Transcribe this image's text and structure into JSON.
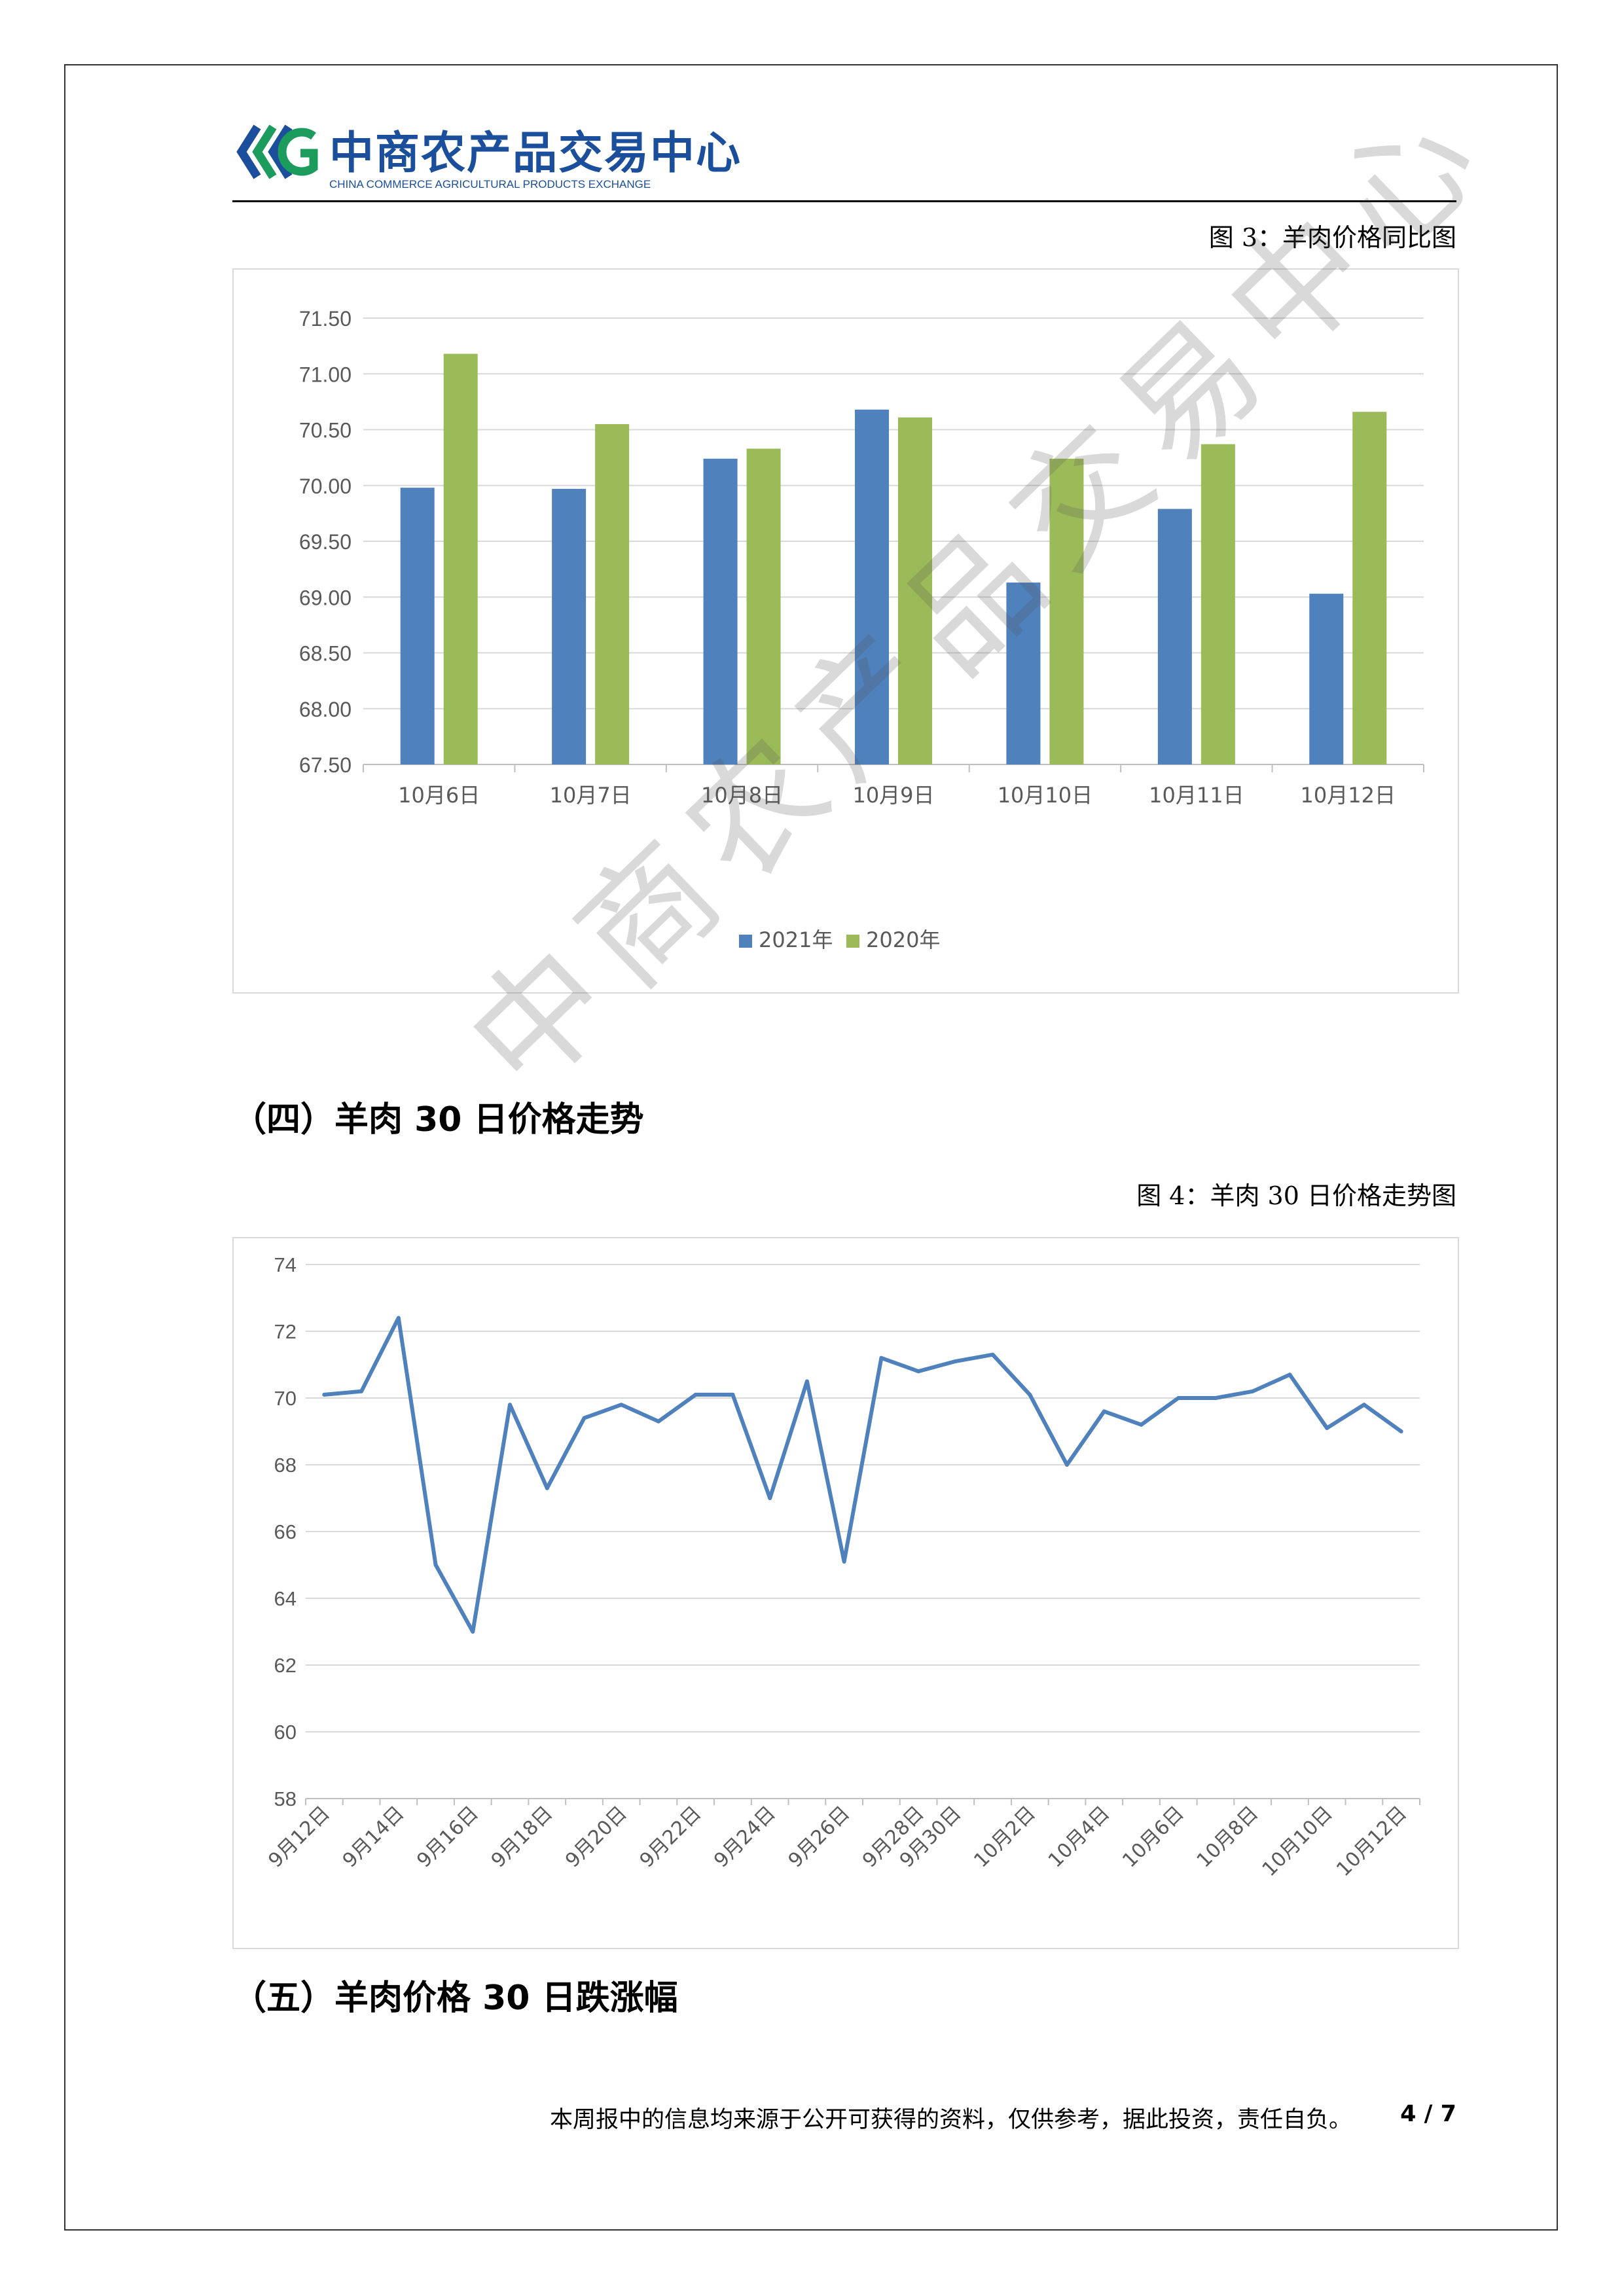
{
  "header": {
    "logo_cn": "中商农产品交易中心",
    "logo_en": "CHINA COMMERCE AGRICULTURAL PRODUCTS EXCHANGE"
  },
  "figure3_caption": "图 3：羊肉价格同比图",
  "section4_title": "（四）羊肉 30 日价格走势",
  "figure4_caption": "图 4：羊肉 30 日价格走势图",
  "section5_title": "（五）羊肉价格 30 日跌涨幅",
  "watermark": "中商农产品交易中心",
  "footer": {
    "disclaimer": "本周报中的信息均来源于公开可获得的资料，仅供参考，据此投资，责任自负。",
    "page": "4 / 7"
  },
  "colors": {
    "series_2021": "#4f81bd",
    "series_2020": "#9bbb59",
    "line": "#4f81bd",
    "grid": "#d9d9d9",
    "brand": "#1b4f9c"
  },
  "chart_data": [
    {
      "type": "bar",
      "categories": [
        "10月6日",
        "10月7日",
        "10月8日",
        "10月9日",
        "10月10日",
        "10月11日",
        "10月12日"
      ],
      "series": [
        {
          "name": "2021年",
          "values": [
            69.98,
            69.97,
            70.24,
            70.68,
            69.13,
            69.79,
            69.03
          ]
        },
        {
          "name": "2020年",
          "values": [
            71.18,
            70.55,
            70.33,
            70.61,
            70.24,
            70.37,
            70.66
          ]
        }
      ],
      "yticks": [
        "67.50",
        "68.00",
        "68.50",
        "69.00",
        "69.50",
        "70.00",
        "70.50",
        "71.00",
        "71.50"
      ],
      "ylim": [
        67.5,
        71.5
      ],
      "legend": "bottom",
      "grid": true
    },
    {
      "type": "line",
      "x": [
        "9月12日",
        "9月13日",
        "9月14日",
        "9月15日",
        "9月16日",
        "9月17日",
        "9月18日",
        "9月19日",
        "9月20日",
        "9月21日",
        "9月22日",
        "9月23日",
        "9月24日",
        "9月25日",
        "9月26日",
        "9月27日",
        "9月28日",
        "9月30日",
        "10月1日",
        "10月2日",
        "10月3日",
        "10月4日",
        "10月5日",
        "10月6日",
        "10月7日",
        "10月8日",
        "10月9日",
        "10月10日",
        "10月11日",
        "10月12日"
      ],
      "values": [
        70.1,
        70.2,
        72.4,
        65.0,
        63.0,
        69.8,
        67.3,
        69.4,
        69.8,
        69.3,
        70.1,
        70.1,
        67.0,
        70.5,
        65.1,
        71.2,
        70.8,
        71.1,
        71.3,
        70.1,
        68.0,
        69.6,
        69.2,
        70.0,
        70.0,
        70.2,
        70.7,
        69.1,
        69.8,
        69.0
      ],
      "xtick_labels": [
        "9月12日",
        "9月14日",
        "9月16日",
        "9月18日",
        "9月20日",
        "9月22日",
        "9月24日",
        "9月26日",
        "9月28日",
        "9月30日",
        "10月2日",
        "10月4日",
        "10月6日",
        "10月8日",
        "10月10日",
        "10月12日"
      ],
      "yticks": [
        "58",
        "60",
        "62",
        "64",
        "66",
        "68",
        "70",
        "72",
        "74"
      ],
      "ylim": [
        58,
        74
      ],
      "grid": true
    }
  ]
}
